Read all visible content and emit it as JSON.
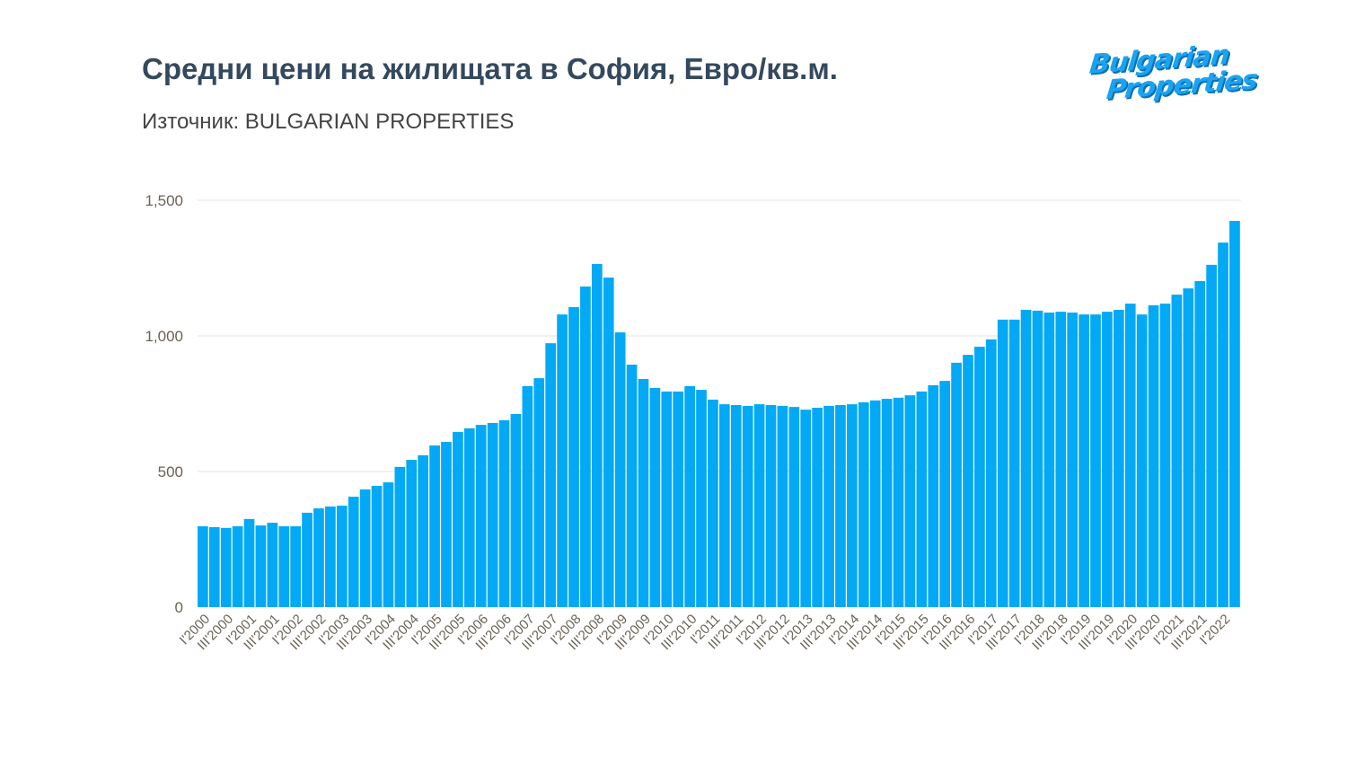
{
  "title": "Средни цени на жилищата в София, Евро/кв.м.",
  "subtitle": "Източник: BULGARIAN PROPERTIES",
  "logo": {
    "line1": "Bulgarian",
    "line2": "Properties",
    "color": "#1aa3f0"
  },
  "chart_data": {
    "type": "bar",
    "title": "Средни цени на жилищата в София, Евро/кв.м.",
    "xlabel": "",
    "ylabel": "",
    "ylim": [
      0,
      1500
    ],
    "yticks": [
      "0",
      "500",
      "1,000",
      "1,500"
    ],
    "ytick_values": [
      0,
      500,
      1000,
      1500
    ],
    "grid": true,
    "bar_color": "#03a9f4",
    "x_tick_labels": [
      "I'2000",
      "III'2000",
      "I'2001",
      "III'2001",
      "I'2002",
      "III'2002",
      "I'2003",
      "III'2003",
      "I'2004",
      "III'2004",
      "I'2005",
      "III'2005",
      "I'2006",
      "III'2006",
      "I'2007",
      "III'2007",
      "I'2008",
      "III'2008",
      "I'2009",
      "III'2009",
      "I'2010",
      "III'2010",
      "I'2011",
      "III'2011",
      "I'2012",
      "III'2012",
      "I'2013",
      "III'2013",
      "I'2014",
      "III'2014",
      "I'2015",
      "III'2015",
      "I'2016",
      "III'2016",
      "I'2017",
      "III'2017",
      "I'2018",
      "III'2018",
      "I'2019",
      "III'2019",
      "I'2020",
      "III'2020",
      "I'2021",
      "III'2021",
      "I'2022"
    ],
    "values": [
      298,
      295,
      292,
      298,
      325,
      301,
      311,
      298,
      298,
      348,
      364,
      371,
      374,
      407,
      434,
      447,
      460,
      517,
      543,
      560,
      596,
      609,
      646,
      659,
      672,
      679,
      689,
      712,
      815,
      844,
      973,
      1079,
      1106,
      1182,
      1265,
      1215,
      1013,
      894,
      841,
      808,
      795,
      795,
      815,
      801,
      765,
      748,
      745,
      742,
      748,
      745,
      742,
      738,
      728,
      735,
      742,
      745,
      748,
      755,
      762,
      768,
      772,
      781,
      795,
      818,
      834,
      901,
      930,
      960,
      987,
      1060,
      1060,
      1096,
      1093,
      1086,
      1089,
      1086,
      1079,
      1079,
      1089,
      1096,
      1119,
      1079,
      1113,
      1119,
      1152,
      1175,
      1202,
      1262,
      1344,
      1424
    ]
  }
}
